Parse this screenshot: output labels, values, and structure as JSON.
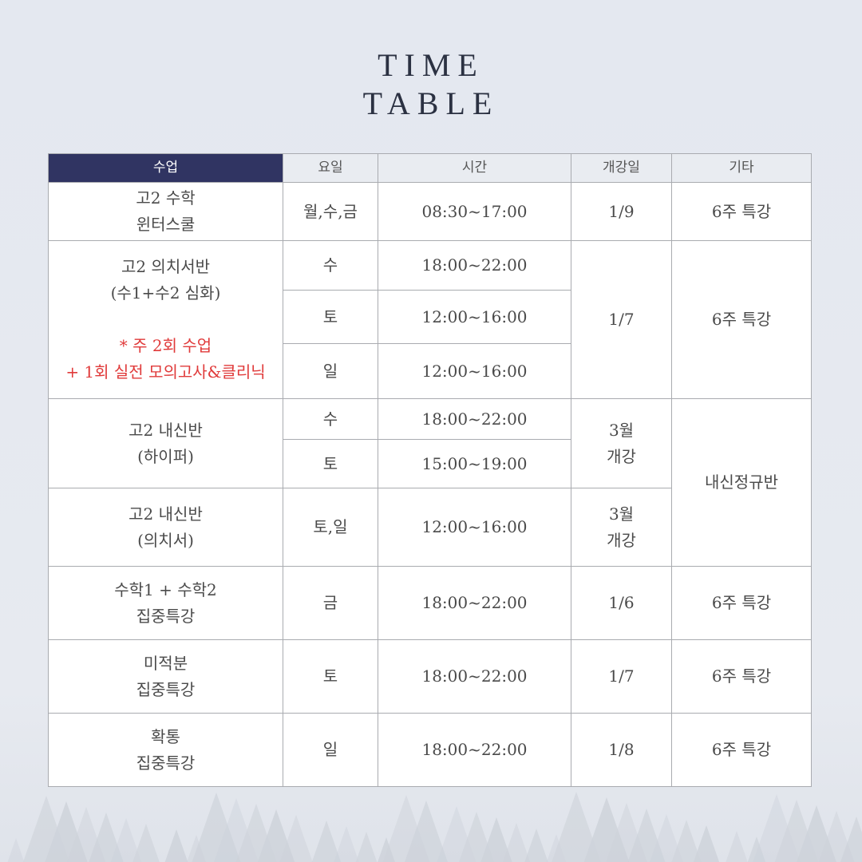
{
  "title": {
    "line1": "TIME",
    "line2": "TABLE"
  },
  "colors": {
    "header_dark": "#303462",
    "note_red": "#e03a3a"
  },
  "headers": [
    "수업",
    "요일",
    "시간",
    "개강일",
    "기타"
  ],
  "rows": [
    {
      "class1": "고2 수학",
      "class2": "윈터스쿨",
      "day": "월,수,금",
      "time": "08:30~17:00",
      "start": "1/9",
      "etc": "6주 특강"
    },
    {
      "class1": "고2 의치서반",
      "class2": "(수1+수2 심화)",
      "note1": "* 주 2회 수업",
      "note2": "+ 1회 실전 모의고사&클리닉",
      "sessions": [
        {
          "day": "수",
          "time": "18:00~22:00"
        },
        {
          "day": "토",
          "time": "12:00~16:00"
        },
        {
          "day": "일",
          "time": "12:00~16:00"
        }
      ],
      "start": "1/7",
      "etc": "6주 특강"
    },
    {
      "class1": "고2 내신반",
      "class2": "(하이퍼)",
      "sessions": [
        {
          "day": "수",
          "time": "18:00~22:00"
        },
        {
          "day": "토",
          "time": "15:00~19:00"
        }
      ],
      "start1": "3월",
      "start2": "개강",
      "etc": "내신정규반"
    },
    {
      "class1": "고2 내신반",
      "class2": "(의치서)",
      "day": "토,일",
      "time": "12:00~16:00",
      "start1": "3월",
      "start2": "개강"
    },
    {
      "class1": "수학1 + 수학2",
      "class2": "집중특강",
      "day": "금",
      "time": "18:00~22:00",
      "start": "1/6",
      "etc": "6주 특강"
    },
    {
      "class1": "미적분",
      "class2": "집중특강",
      "day": "토",
      "time": "18:00~22:00",
      "start": "1/7",
      "etc": "6주 특강"
    },
    {
      "class1": "확통",
      "class2": "집중특강",
      "day": "일",
      "time": "18:00~22:00",
      "start": "1/8",
      "etc": "6주 특강"
    }
  ]
}
